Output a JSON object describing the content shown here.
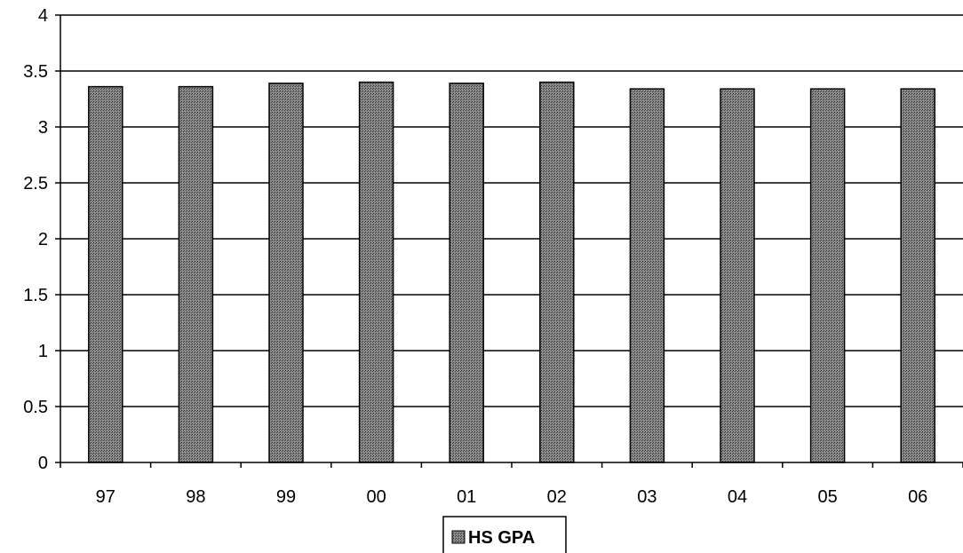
{
  "chart_data": {
    "type": "bar",
    "title": "",
    "xlabel": "",
    "ylabel": "",
    "categories": [
      "97",
      "98",
      "99",
      "00",
      "01",
      "02",
      "03",
      "04",
      "05",
      "06"
    ],
    "series": [
      {
        "name": "HS GPA",
        "values": [
          3.36,
          3.36,
          3.39,
          3.4,
          3.39,
          3.4,
          3.34,
          3.34,
          3.34,
          3.34
        ]
      }
    ],
    "ylim": [
      0,
      4
    ],
    "yticks": [
      "0",
      "0.5",
      "1",
      "1.5",
      "2",
      "2.5",
      "3",
      "3.5",
      "4"
    ],
    "grid": true,
    "legend_position": "bottom",
    "colors": {
      "bar_fill": "#7a7a7a",
      "bar_stroke": "#000000",
      "grid": "#000000",
      "background": "#ffffff"
    }
  }
}
